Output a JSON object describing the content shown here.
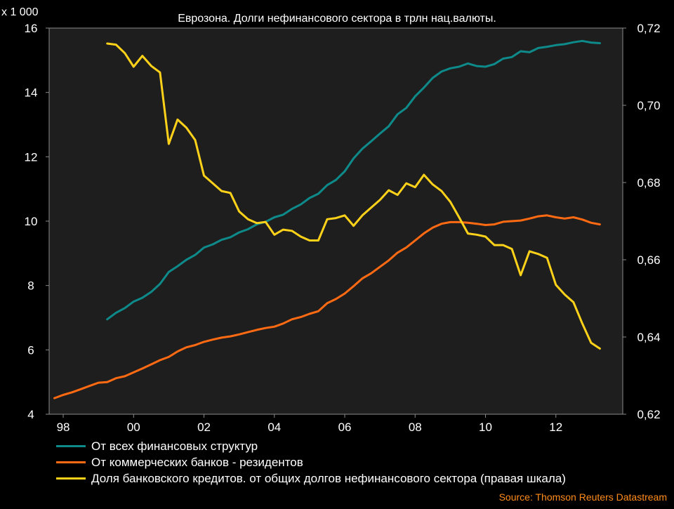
{
  "chart_data": {
    "type": "line",
    "title": "Еврозона. Долги нефинансового сектора в трлн нац.валюты.",
    "y_left_multiplier": "x 1 000",
    "y_left": {
      "range": [
        4,
        16
      ],
      "ticks": [
        "4",
        "6",
        "8",
        "10",
        "12",
        "14",
        "16"
      ]
    },
    "y_right": {
      "range": [
        0.62,
        0.72
      ],
      "ticks": [
        "0,62",
        "0,64",
        "0,66",
        "0,68",
        "0,70",
        "0,72"
      ]
    },
    "x_axis": {
      "range": [
        1997.6,
        2013.9
      ],
      "ticks": [
        {
          "label": "98",
          "x": 1998
        },
        {
          "label": "00",
          "x": 2000
        },
        {
          "label": "02",
          "x": 2002
        },
        {
          "label": "04",
          "x": 2004
        },
        {
          "label": "06",
          "x": 2006
        },
        {
          "label": "08",
          "x": 2008
        },
        {
          "label": "10",
          "x": 2010
        },
        {
          "label": "12",
          "x": 2012
        }
      ]
    },
    "grid": false,
    "legend_position": "bottom-left",
    "source": "Source: Thomson Reuters Datastream",
    "series": [
      {
        "name": "От всех финансовых структур",
        "axis": "left",
        "color": "#0e8a8a",
        "points": [
          [
            1999.25,
            6.95
          ],
          [
            1999.5,
            7.15
          ],
          [
            1999.75,
            7.3
          ],
          [
            2000.0,
            7.5
          ],
          [
            2000.25,
            7.62
          ],
          [
            2000.5,
            7.8
          ],
          [
            2000.75,
            8.05
          ],
          [
            2001.0,
            8.42
          ],
          [
            2001.25,
            8.6
          ],
          [
            2001.5,
            8.8
          ],
          [
            2001.75,
            8.95
          ],
          [
            2002.0,
            9.18
          ],
          [
            2002.25,
            9.28
          ],
          [
            2002.5,
            9.42
          ],
          [
            2002.75,
            9.5
          ],
          [
            2003.0,
            9.65
          ],
          [
            2003.25,
            9.75
          ],
          [
            2003.5,
            9.9
          ],
          [
            2003.75,
            9.98
          ],
          [
            2004.0,
            10.12
          ],
          [
            2004.25,
            10.2
          ],
          [
            2004.5,
            10.38
          ],
          [
            2004.75,
            10.52
          ],
          [
            2005.0,
            10.72
          ],
          [
            2005.25,
            10.85
          ],
          [
            2005.5,
            11.12
          ],
          [
            2005.75,
            11.28
          ],
          [
            2006.0,
            11.55
          ],
          [
            2006.25,
            11.95
          ],
          [
            2006.5,
            12.25
          ],
          [
            2006.75,
            12.48
          ],
          [
            2007.0,
            12.72
          ],
          [
            2007.25,
            12.95
          ],
          [
            2007.5,
            13.32
          ],
          [
            2007.75,
            13.52
          ],
          [
            2008.0,
            13.88
          ],
          [
            2008.25,
            14.15
          ],
          [
            2008.5,
            14.45
          ],
          [
            2008.75,
            14.65
          ],
          [
            2009.0,
            14.75
          ],
          [
            2009.25,
            14.8
          ],
          [
            2009.5,
            14.9
          ],
          [
            2009.75,
            14.82
          ],
          [
            2010.0,
            14.8
          ],
          [
            2010.25,
            14.88
          ],
          [
            2010.5,
            15.05
          ],
          [
            2010.75,
            15.1
          ],
          [
            2011.0,
            15.28
          ],
          [
            2011.25,
            15.25
          ],
          [
            2011.5,
            15.38
          ],
          [
            2011.75,
            15.42
          ],
          [
            2012.0,
            15.47
          ],
          [
            2012.25,
            15.5
          ],
          [
            2012.5,
            15.56
          ],
          [
            2012.75,
            15.6
          ],
          [
            2013.0,
            15.55
          ],
          [
            2013.25,
            15.53
          ]
        ]
      },
      {
        "name": "От коммерческих банков - резидентов",
        "axis": "left",
        "color": "#ff6a13",
        "points": [
          [
            1997.75,
            4.5
          ],
          [
            1998.0,
            4.6
          ],
          [
            1998.25,
            4.68
          ],
          [
            1998.5,
            4.78
          ],
          [
            1998.75,
            4.88
          ],
          [
            1999.0,
            4.98
          ],
          [
            1999.25,
            5.0
          ],
          [
            1999.5,
            5.12
          ],
          [
            1999.75,
            5.18
          ],
          [
            2000.0,
            5.3
          ],
          [
            2000.25,
            5.42
          ],
          [
            2000.5,
            5.55
          ],
          [
            2000.75,
            5.68
          ],
          [
            2001.0,
            5.78
          ],
          [
            2001.25,
            5.95
          ],
          [
            2001.5,
            6.08
          ],
          [
            2001.75,
            6.15
          ],
          [
            2002.0,
            6.25
          ],
          [
            2002.25,
            6.32
          ],
          [
            2002.5,
            6.38
          ],
          [
            2002.75,
            6.42
          ],
          [
            2003.0,
            6.48
          ],
          [
            2003.25,
            6.55
          ],
          [
            2003.5,
            6.62
          ],
          [
            2003.75,
            6.68
          ],
          [
            2004.0,
            6.72
          ],
          [
            2004.25,
            6.82
          ],
          [
            2004.5,
            6.95
          ],
          [
            2004.75,
            7.02
          ],
          [
            2005.0,
            7.12
          ],
          [
            2005.25,
            7.2
          ],
          [
            2005.5,
            7.45
          ],
          [
            2005.75,
            7.58
          ],
          [
            2006.0,
            7.75
          ],
          [
            2006.25,
            7.98
          ],
          [
            2006.5,
            8.22
          ],
          [
            2006.75,
            8.38
          ],
          [
            2007.0,
            8.58
          ],
          [
            2007.25,
            8.78
          ],
          [
            2007.5,
            9.02
          ],
          [
            2007.75,
            9.18
          ],
          [
            2008.0,
            9.4
          ],
          [
            2008.25,
            9.62
          ],
          [
            2008.5,
            9.8
          ],
          [
            2008.75,
            9.92
          ],
          [
            2009.0,
            9.97
          ],
          [
            2009.25,
            9.97
          ],
          [
            2009.5,
            9.95
          ],
          [
            2009.75,
            9.92
          ],
          [
            2010.0,
            9.88
          ],
          [
            2010.25,
            9.9
          ],
          [
            2010.5,
            9.98
          ],
          [
            2010.75,
            10.0
          ],
          [
            2011.0,
            10.02
          ],
          [
            2011.25,
            10.08
          ],
          [
            2011.5,
            10.15
          ],
          [
            2011.75,
            10.18
          ],
          [
            2012.0,
            10.12
          ],
          [
            2012.25,
            10.08
          ],
          [
            2012.5,
            10.12
          ],
          [
            2012.75,
            10.05
          ],
          [
            2013.0,
            9.95
          ],
          [
            2013.25,
            9.9
          ]
        ]
      },
      {
        "name": "Доля банковского кредитов. от общих долгов нефинансового сектора (правая шкала)",
        "axis": "right",
        "color": "#ffd21a",
        "points": [
          [
            1999.25,
            0.716
          ],
          [
            1999.5,
            0.7157
          ],
          [
            1999.75,
            0.7135
          ],
          [
            2000.0,
            0.71
          ],
          [
            2000.25,
            0.7128
          ],
          [
            2000.5,
            0.7102
          ],
          [
            2000.75,
            0.7085
          ],
          [
            2001.0,
            0.69
          ],
          [
            2001.25,
            0.6963
          ],
          [
            2001.5,
            0.6942
          ],
          [
            2001.75,
            0.691
          ],
          [
            2002.0,
            0.6818
          ],
          [
            2002.25,
            0.6798
          ],
          [
            2002.5,
            0.6778
          ],
          [
            2002.75,
            0.6773
          ],
          [
            2003.0,
            0.6725
          ],
          [
            2003.25,
            0.6705
          ],
          [
            2003.5,
            0.6695
          ],
          [
            2003.75,
            0.6698
          ],
          [
            2004.0,
            0.6665
          ],
          [
            2004.25,
            0.6678
          ],
          [
            2004.5,
            0.6675
          ],
          [
            2004.75,
            0.666
          ],
          [
            2005.0,
            0.665
          ],
          [
            2005.25,
            0.665
          ],
          [
            2005.5,
            0.6705
          ],
          [
            2005.75,
            0.6708
          ],
          [
            2006.0,
            0.6715
          ],
          [
            2006.25,
            0.6688
          ],
          [
            2006.5,
            0.6715
          ],
          [
            2006.75,
            0.6735
          ],
          [
            2007.0,
            0.6755
          ],
          [
            2007.25,
            0.678
          ],
          [
            2007.5,
            0.6768
          ],
          [
            2007.75,
            0.6798
          ],
          [
            2008.0,
            0.6788
          ],
          [
            2008.25,
            0.682
          ],
          [
            2008.5,
            0.6795
          ],
          [
            2008.75,
            0.6778
          ],
          [
            2009.0,
            0.675
          ],
          [
            2009.25,
            0.671
          ],
          [
            2009.5,
            0.6668
          ],
          [
            2009.75,
            0.6665
          ],
          [
            2010.0,
            0.666
          ],
          [
            2010.25,
            0.6638
          ],
          [
            2010.5,
            0.6638
          ],
          [
            2010.75,
            0.6628
          ],
          [
            2011.0,
            0.656
          ],
          [
            2011.25,
            0.6622
          ],
          [
            2011.5,
            0.6615
          ],
          [
            2011.75,
            0.6605
          ],
          [
            2012.0,
            0.6535
          ],
          [
            2012.25,
            0.651
          ],
          [
            2012.5,
            0.649
          ],
          [
            2012.75,
            0.6435
          ],
          [
            2013.0,
            0.6385
          ],
          [
            2013.25,
            0.637
          ]
        ]
      }
    ]
  }
}
